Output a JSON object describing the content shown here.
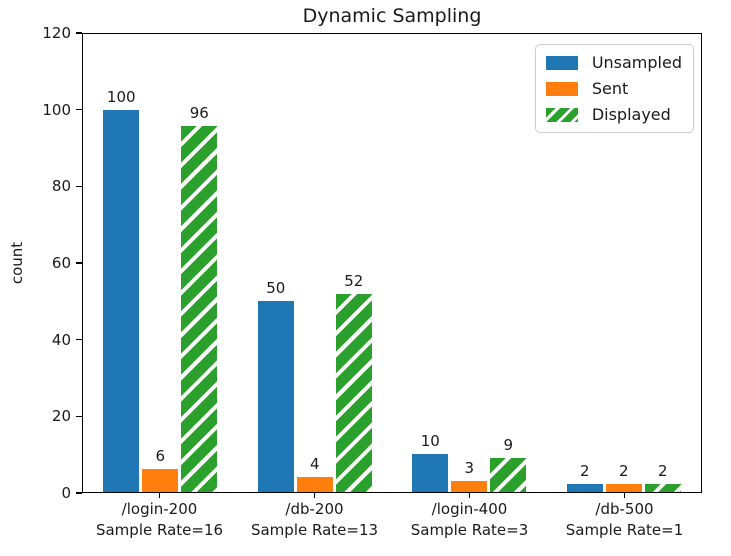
{
  "chart_data": {
    "type": "bar",
    "title": "Dynamic Sampling",
    "xlabel": "",
    "ylabel": "count",
    "ylim": [
      0,
      120
    ],
    "yticks": [
      0,
      20,
      40,
      60,
      80,
      100,
      120
    ],
    "grid": false,
    "bar_value_labels": true,
    "legend_position": "upper right",
    "categories": [
      {
        "line1": "/login-200",
        "line2": "Sample Rate=16"
      },
      {
        "line1": "/db-200",
        "line2": "Sample Rate=13"
      },
      {
        "line1": "/login-400",
        "line2": "Sample Rate=3"
      },
      {
        "line1": "/db-500",
        "line2": "Sample Rate=1"
      }
    ],
    "series": [
      {
        "name": "Unsampled",
        "color": "#1f77b4",
        "hatch": false,
        "values": [
          100,
          50,
          10,
          2
        ]
      },
      {
        "name": "Sent",
        "color": "#ff7f0e",
        "hatch": false,
        "values": [
          6,
          4,
          3,
          2
        ]
      },
      {
        "name": "Displayed",
        "color": "#2ca02c",
        "hatch": true,
        "hatch_color": "#ffffff",
        "values": [
          96,
          52,
          9,
          2
        ]
      }
    ]
  }
}
